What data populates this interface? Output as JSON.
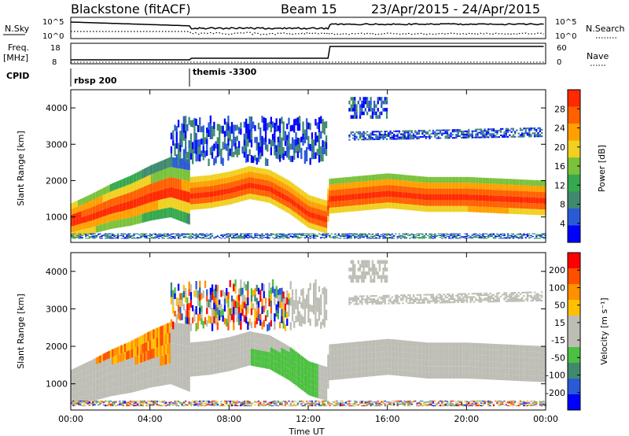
{
  "header": {
    "station": "Blackstone (fitACF)",
    "beam": "Beam 15",
    "dates": "23/Apr/2015 - 24/Apr/2015"
  },
  "summary": {
    "nsky_label": "N.Sky",
    "nsky_ticks": [
      "10^5",
      "10^0"
    ],
    "nsearch_label": "N.Search",
    "freq_label": "Freq.",
    "freq_unit": "[MHz]",
    "freq_ticks": [
      "18",
      "8"
    ],
    "nave_label": "Nave",
    "nave_ticks": [
      "60",
      "0"
    ],
    "cpid_label": "CPID",
    "cpid_segments": [
      {
        "name": "rbsp 200",
        "start_hour": 0
      },
      {
        "name": "themis -3300",
        "start_hour": 6
      }
    ]
  },
  "colors": {
    "power_scale": [
      "#0000ff",
      "#2a5ad6",
      "#3f8a6e",
      "#36a84e",
      "#7ac23a",
      "#f0d020",
      "#ffa000",
      "#ff6000",
      "#ff2a00"
    ],
    "velocity_scale": [
      "#0000ff",
      "#2a5ad6",
      "#3f8a6e",
      "#4cc040",
      "#bdbdb5",
      "#bdbdb5",
      "#ffc000",
      "#ff9000",
      "#ff5000",
      "#ff0000"
    ]
  },
  "chart_data": [
    {
      "type": "heatmap",
      "panel": "power",
      "ylabel": "Slant Range [km]",
      "xlabel": "Time UT",
      "x_ticks": [
        "00:00",
        "04:00",
        "08:00",
        "12:00",
        "16:00",
        "20:00",
        "00:00"
      ],
      "xlim": [
        0,
        24
      ],
      "ylim": [
        300,
        4500
      ],
      "y_ticks": [
        1000,
        2000,
        3000,
        4000
      ],
      "colorbar_label": "Power [dB]",
      "colorbar_ticks": [
        4,
        8,
        12,
        16,
        20,
        24,
        28
      ],
      "peak_trace": {
        "hours": [
          0,
          1,
          2,
          3,
          4,
          5,
          6,
          7,
          8,
          9,
          10,
          11,
          12,
          12.9,
          13,
          14,
          16,
          18,
          20,
          22,
          24
        ],
        "range_km": [
          880,
          1050,
          1250,
          1400,
          1600,
          1750,
          1600,
          1650,
          1750,
          1900,
          1800,
          1500,
          1100,
          950,
          1500,
          1550,
          1650,
          1550,
          1550,
          1500,
          1450
        ]
      }
    },
    {
      "type": "heatmap",
      "panel": "velocity",
      "ylabel": "Slant Range [km]",
      "xlabel": "Time UT",
      "x_ticks": [
        "00:00",
        "04:00",
        "08:00",
        "12:00",
        "16:00",
        "20:00",
        "00:00"
      ],
      "xlim": [
        0,
        24
      ],
      "ylim": [
        300,
        4500
      ],
      "y_ticks": [
        1000,
        2000,
        3000,
        4000
      ],
      "colorbar_label": "Velocity [m s⁻¹]",
      "colorbar_ticks": [
        200,
        100,
        50,
        15,
        -15,
        -50,
        -100,
        -200
      ]
    }
  ],
  "x_axis_title": "Time UT"
}
